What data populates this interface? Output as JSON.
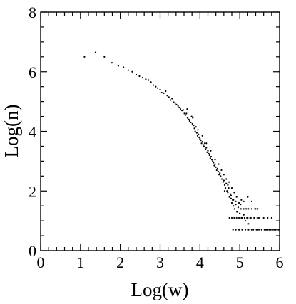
{
  "chart_data": {
    "type": "scatter",
    "title": "",
    "xlabel": "Log(w)",
    "ylabel": "Log(n)",
    "xlim": [
      0,
      6
    ],
    "ylim": [
      0,
      8
    ],
    "xticks": [
      0,
      1,
      2,
      3,
      4,
      5,
      6
    ],
    "yticks": [
      0,
      2,
      4,
      6,
      8
    ],
    "grid": false,
    "legend": "none",
    "marker_color": "#000000",
    "series": [
      {
        "points": [
          [
            1.1,
            6.5
          ],
          [
            1.38,
            6.65
          ],
          [
            1.6,
            6.5
          ],
          [
            1.79,
            6.3
          ],
          [
            1.95,
            6.2
          ],
          [
            2.08,
            6.15
          ],
          [
            2.2,
            6.05
          ],
          [
            2.3,
            6.0
          ],
          [
            2.4,
            5.9
          ],
          [
            2.48,
            5.85
          ],
          [
            2.56,
            5.8
          ],
          [
            2.64,
            5.75
          ],
          [
            2.71,
            5.72
          ],
          [
            2.77,
            5.65
          ],
          [
            2.83,
            5.55
          ],
          [
            2.89,
            5.5
          ],
          [
            2.94,
            5.45
          ],
          [
            3.0,
            5.4
          ],
          [
            3.04,
            5.3
          ],
          [
            3.09,
            5.28
          ],
          [
            3.14,
            5.35
          ],
          [
            3.18,
            5.2
          ],
          [
            3.22,
            5.15
          ],
          [
            3.26,
            5.05
          ],
          [
            3.3,
            5.1
          ],
          [
            3.34,
            4.98
          ],
          [
            3.38,
            4.95
          ],
          [
            3.41,
            4.9
          ],
          [
            3.45,
            4.85
          ],
          [
            3.48,
            4.8
          ],
          [
            3.51,
            4.75
          ],
          [
            3.55,
            4.7
          ],
          [
            3.58,
            4.72
          ],
          [
            3.61,
            4.6
          ],
          [
            3.64,
            4.55
          ],
          [
            3.66,
            4.6
          ],
          [
            3.69,
            4.45
          ],
          [
            3.72,
            4.4
          ],
          [
            3.74,
            4.35
          ],
          [
            3.77,
            4.3
          ],
          [
            3.79,
            4.5
          ],
          [
            3.81,
            4.25
          ],
          [
            3.84,
            4.2
          ],
          [
            3.86,
            4.1
          ],
          [
            3.88,
            4.0
          ],
          [
            3.9,
            4.15
          ],
          [
            3.92,
            3.95
          ],
          [
            3.94,
            3.85
          ],
          [
            3.96,
            3.9
          ],
          [
            3.98,
            3.8
          ],
          [
            4.0,
            3.75
          ],
          [
            4.02,
            3.7
          ],
          [
            4.04,
            3.6
          ],
          [
            4.06,
            3.65
          ],
          [
            4.08,
            3.55
          ],
          [
            4.1,
            3.5
          ],
          [
            4.12,
            3.6
          ],
          [
            4.14,
            3.4
          ],
          [
            4.16,
            3.45
          ],
          [
            4.18,
            3.3
          ],
          [
            4.2,
            3.35
          ],
          [
            4.22,
            3.25
          ],
          [
            4.24,
            3.2
          ],
          [
            4.26,
            3.1
          ],
          [
            4.28,
            3.15
          ],
          [
            4.3,
            3.05
          ],
          [
            4.32,
            3.0
          ],
          [
            4.34,
            2.95
          ],
          [
            4.36,
            2.85
          ],
          [
            4.38,
            2.9
          ],
          [
            4.4,
            2.8
          ],
          [
            4.42,
            2.7
          ],
          [
            4.44,
            2.75
          ],
          [
            4.46,
            2.65
          ],
          [
            4.48,
            2.55
          ],
          [
            4.5,
            2.6
          ],
          [
            4.52,
            2.5
          ],
          [
            4.55,
            2.4
          ],
          [
            4.58,
            2.3
          ],
          [
            4.6,
            2.35
          ],
          [
            4.62,
            2.2
          ],
          [
            4.64,
            2.1
          ],
          [
            4.66,
            2.25
          ],
          [
            4.68,
            2.0
          ],
          [
            4.7,
            1.95
          ],
          [
            4.72,
            2.1
          ],
          [
            4.74,
            1.8
          ],
          [
            4.76,
            1.9
          ],
          [
            4.78,
            1.75
          ],
          [
            4.8,
            1.6
          ],
          [
            4.82,
            1.7
          ],
          [
            4.84,
            1.5
          ],
          [
            4.87,
            1.4
          ],
          [
            4.9,
            1.55
          ],
          [
            4.93,
            1.3
          ],
          [
            4.96,
            1.45
          ],
          [
            5.0,
            1.25
          ],
          [
            5.03,
            1.4
          ],
          [
            5.06,
            1.1
          ],
          [
            5.1,
            1.2
          ],
          [
            5.14,
            1.0
          ],
          [
            5.18,
            1.1
          ],
          [
            5.22,
            0.9
          ],
          [
            5.26,
            1.1
          ],
          [
            5.3,
            0.7
          ],
          [
            5.36,
            1.1
          ],
          [
            5.42,
            0.7
          ],
          [
            5.48,
            1.1
          ],
          [
            5.55,
            0.7
          ],
          [
            5.62,
            0.7
          ],
          [
            5.7,
            0.7
          ],
          [
            5.78,
            0.7
          ],
          [
            5.86,
            0.7
          ],
          [
            5.94,
            0.7
          ],
          [
            3.68,
            4.75
          ],
          [
            3.82,
            4.45
          ],
          [
            3.95,
            4.05
          ],
          [
            4.06,
            3.85
          ],
          [
            4.16,
            3.6
          ],
          [
            4.27,
            3.35
          ],
          [
            4.38,
            3.05
          ],
          [
            4.47,
            2.9
          ],
          [
            4.54,
            2.7
          ],
          [
            4.6,
            2.55
          ],
          [
            4.66,
            2.4
          ],
          [
            4.73,
            2.3
          ],
          [
            4.8,
            2.1
          ],
          [
            4.86,
            1.95
          ],
          [
            4.92,
            1.8
          ],
          [
            4.98,
            1.6
          ],
          [
            5.04,
            1.7
          ],
          [
            5.1,
            1.4
          ],
          [
            5.16,
            1.4
          ],
          [
            5.22,
            1.4
          ],
          [
            5.3,
            1.4
          ],
          [
            5.38,
            1.4
          ],
          [
            5.45,
            1.4
          ],
          [
            4.74,
            1.1
          ],
          [
            4.8,
            1.1
          ],
          [
            4.86,
            1.1
          ],
          [
            4.92,
            1.1
          ],
          [
            4.98,
            1.1
          ],
          [
            5.04,
            1.1
          ],
          [
            5.12,
            1.1
          ],
          [
            5.2,
            1.1
          ],
          [
            5.28,
            1.1
          ],
          [
            5.44,
            1.1
          ],
          [
            5.6,
            1.1
          ],
          [
            5.7,
            1.1
          ],
          [
            5.8,
            1.1
          ],
          [
            4.83,
            0.7
          ],
          [
            4.9,
            0.7
          ],
          [
            4.98,
            0.7
          ],
          [
            5.06,
            0.7
          ],
          [
            5.14,
            0.7
          ],
          [
            5.22,
            0.7
          ],
          [
            5.34,
            0.7
          ],
          [
            5.46,
            0.7
          ],
          [
            5.5,
            0.7
          ],
          [
            5.66,
            0.7
          ],
          [
            5.74,
            0.7
          ],
          [
            5.82,
            0.7
          ],
          [
            5.9,
            0.7
          ],
          [
            5.98,
            0.7
          ],
          [
            4.78,
            1.85
          ],
          [
            4.9,
            1.65
          ],
          [
            5.02,
            1.55
          ],
          [
            5.1,
            1.65
          ],
          [
            5.2,
            1.8
          ],
          [
            5.3,
            1.65
          ],
          [
            5.4,
            1.4
          ],
          [
            4.62,
            2.0
          ],
          [
            4.7,
            2.2
          ],
          [
            4.84,
            1.7
          ]
        ]
      }
    ]
  }
}
